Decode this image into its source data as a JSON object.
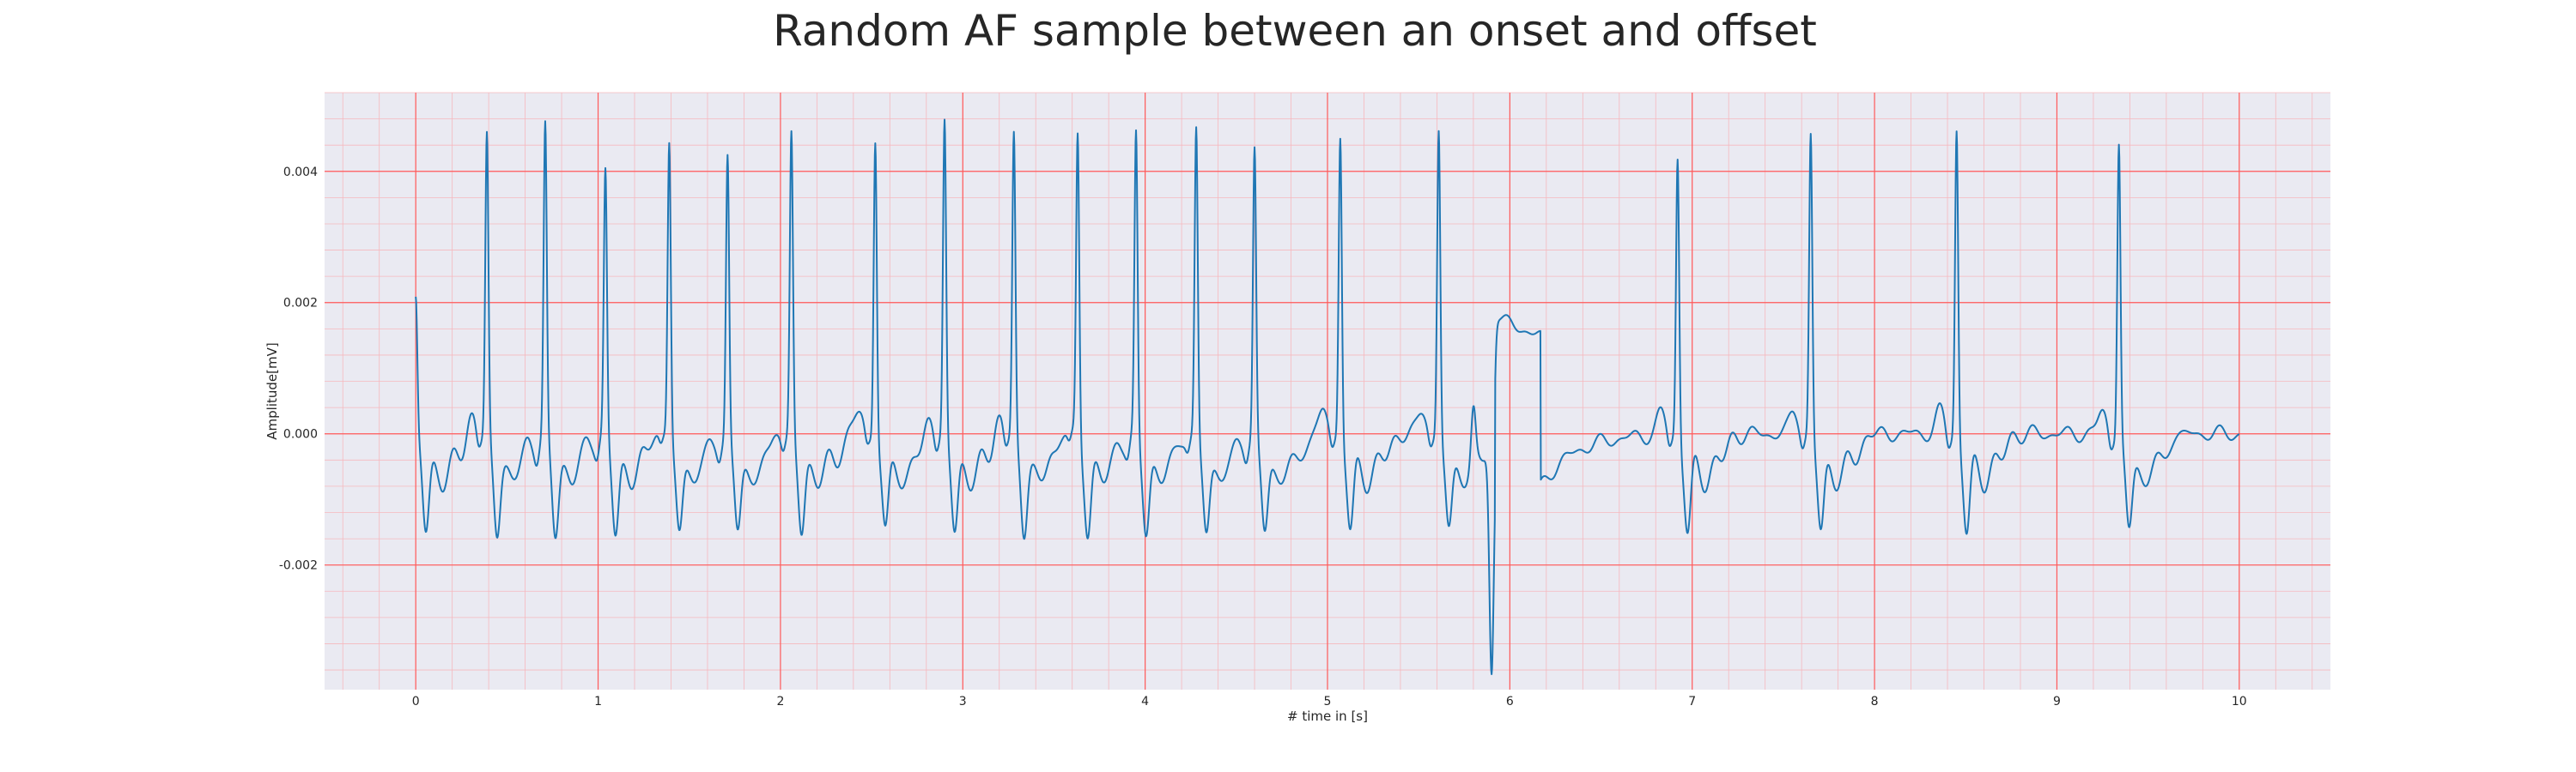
{
  "chart_data": {
    "type": "line",
    "title": "Random AF sample between an onset and offset",
    "xlabel": "# time in [s]",
    "ylabel": "Amplitude[mV]",
    "xlim": [
      -0.5,
      10.5
    ],
    "ylim": [
      -0.0039,
      0.0052
    ],
    "x_ticks": [
      0,
      1,
      2,
      3,
      4,
      5,
      6,
      7,
      8,
      9,
      10
    ],
    "x_tick_labels": [
      "0",
      "1",
      "2",
      "3",
      "4",
      "5",
      "6",
      "7",
      "8",
      "9",
      "10"
    ],
    "y_ticks": [
      -0.002,
      0.0,
      0.002,
      0.004
    ],
    "y_tick_labels": [
      "-0.002",
      "0.000",
      "0.002",
      "0.004"
    ],
    "grid": true,
    "minor_grid": true,
    "background_color": "#eaeaf2",
    "major_grid_color": "#ff5a5a",
    "minor_grid_color": "#f6b8be",
    "series": [
      {
        "color": "#1f77b4",
        "beats": [
          {
            "t": 0.0,
            "peak": 0.0021
          },
          {
            "t": 0.39,
            "peak": 0.0046
          },
          {
            "t": 0.71,
            "peak": 0.0047
          },
          {
            "t": 1.04,
            "peak": 0.004
          },
          {
            "t": 1.39,
            "peak": 0.0045
          },
          {
            "t": 1.71,
            "peak": 0.0043
          },
          {
            "t": 2.06,
            "peak": 0.0046
          },
          {
            "t": 2.52,
            "peak": 0.0046
          },
          {
            "t": 2.9,
            "peak": 0.0048
          },
          {
            "t": 3.28,
            "peak": 0.0046
          },
          {
            "t": 3.63,
            "peak": 0.0046
          },
          {
            "t": 3.95,
            "peak": 0.0046
          },
          {
            "t": 4.28,
            "peak": 0.0047
          },
          {
            "t": 4.6,
            "peak": 0.0044
          },
          {
            "t": 5.07,
            "peak": 0.0046
          },
          {
            "t": 5.61,
            "peak": 0.0047
          },
          {
            "t": 6.92,
            "peak": 0.0043
          },
          {
            "t": 7.65,
            "peak": 0.0046
          },
          {
            "t": 8.45,
            "peak": 0.0047
          },
          {
            "t": 9.34,
            "peak": 0.0045
          }
        ],
        "artifact": {
          "t_start": 5.82,
          "t_end": 6.15,
          "min": -0.0035,
          "max": 0.0018
        },
        "x_end": 10.0
      }
    ]
  }
}
